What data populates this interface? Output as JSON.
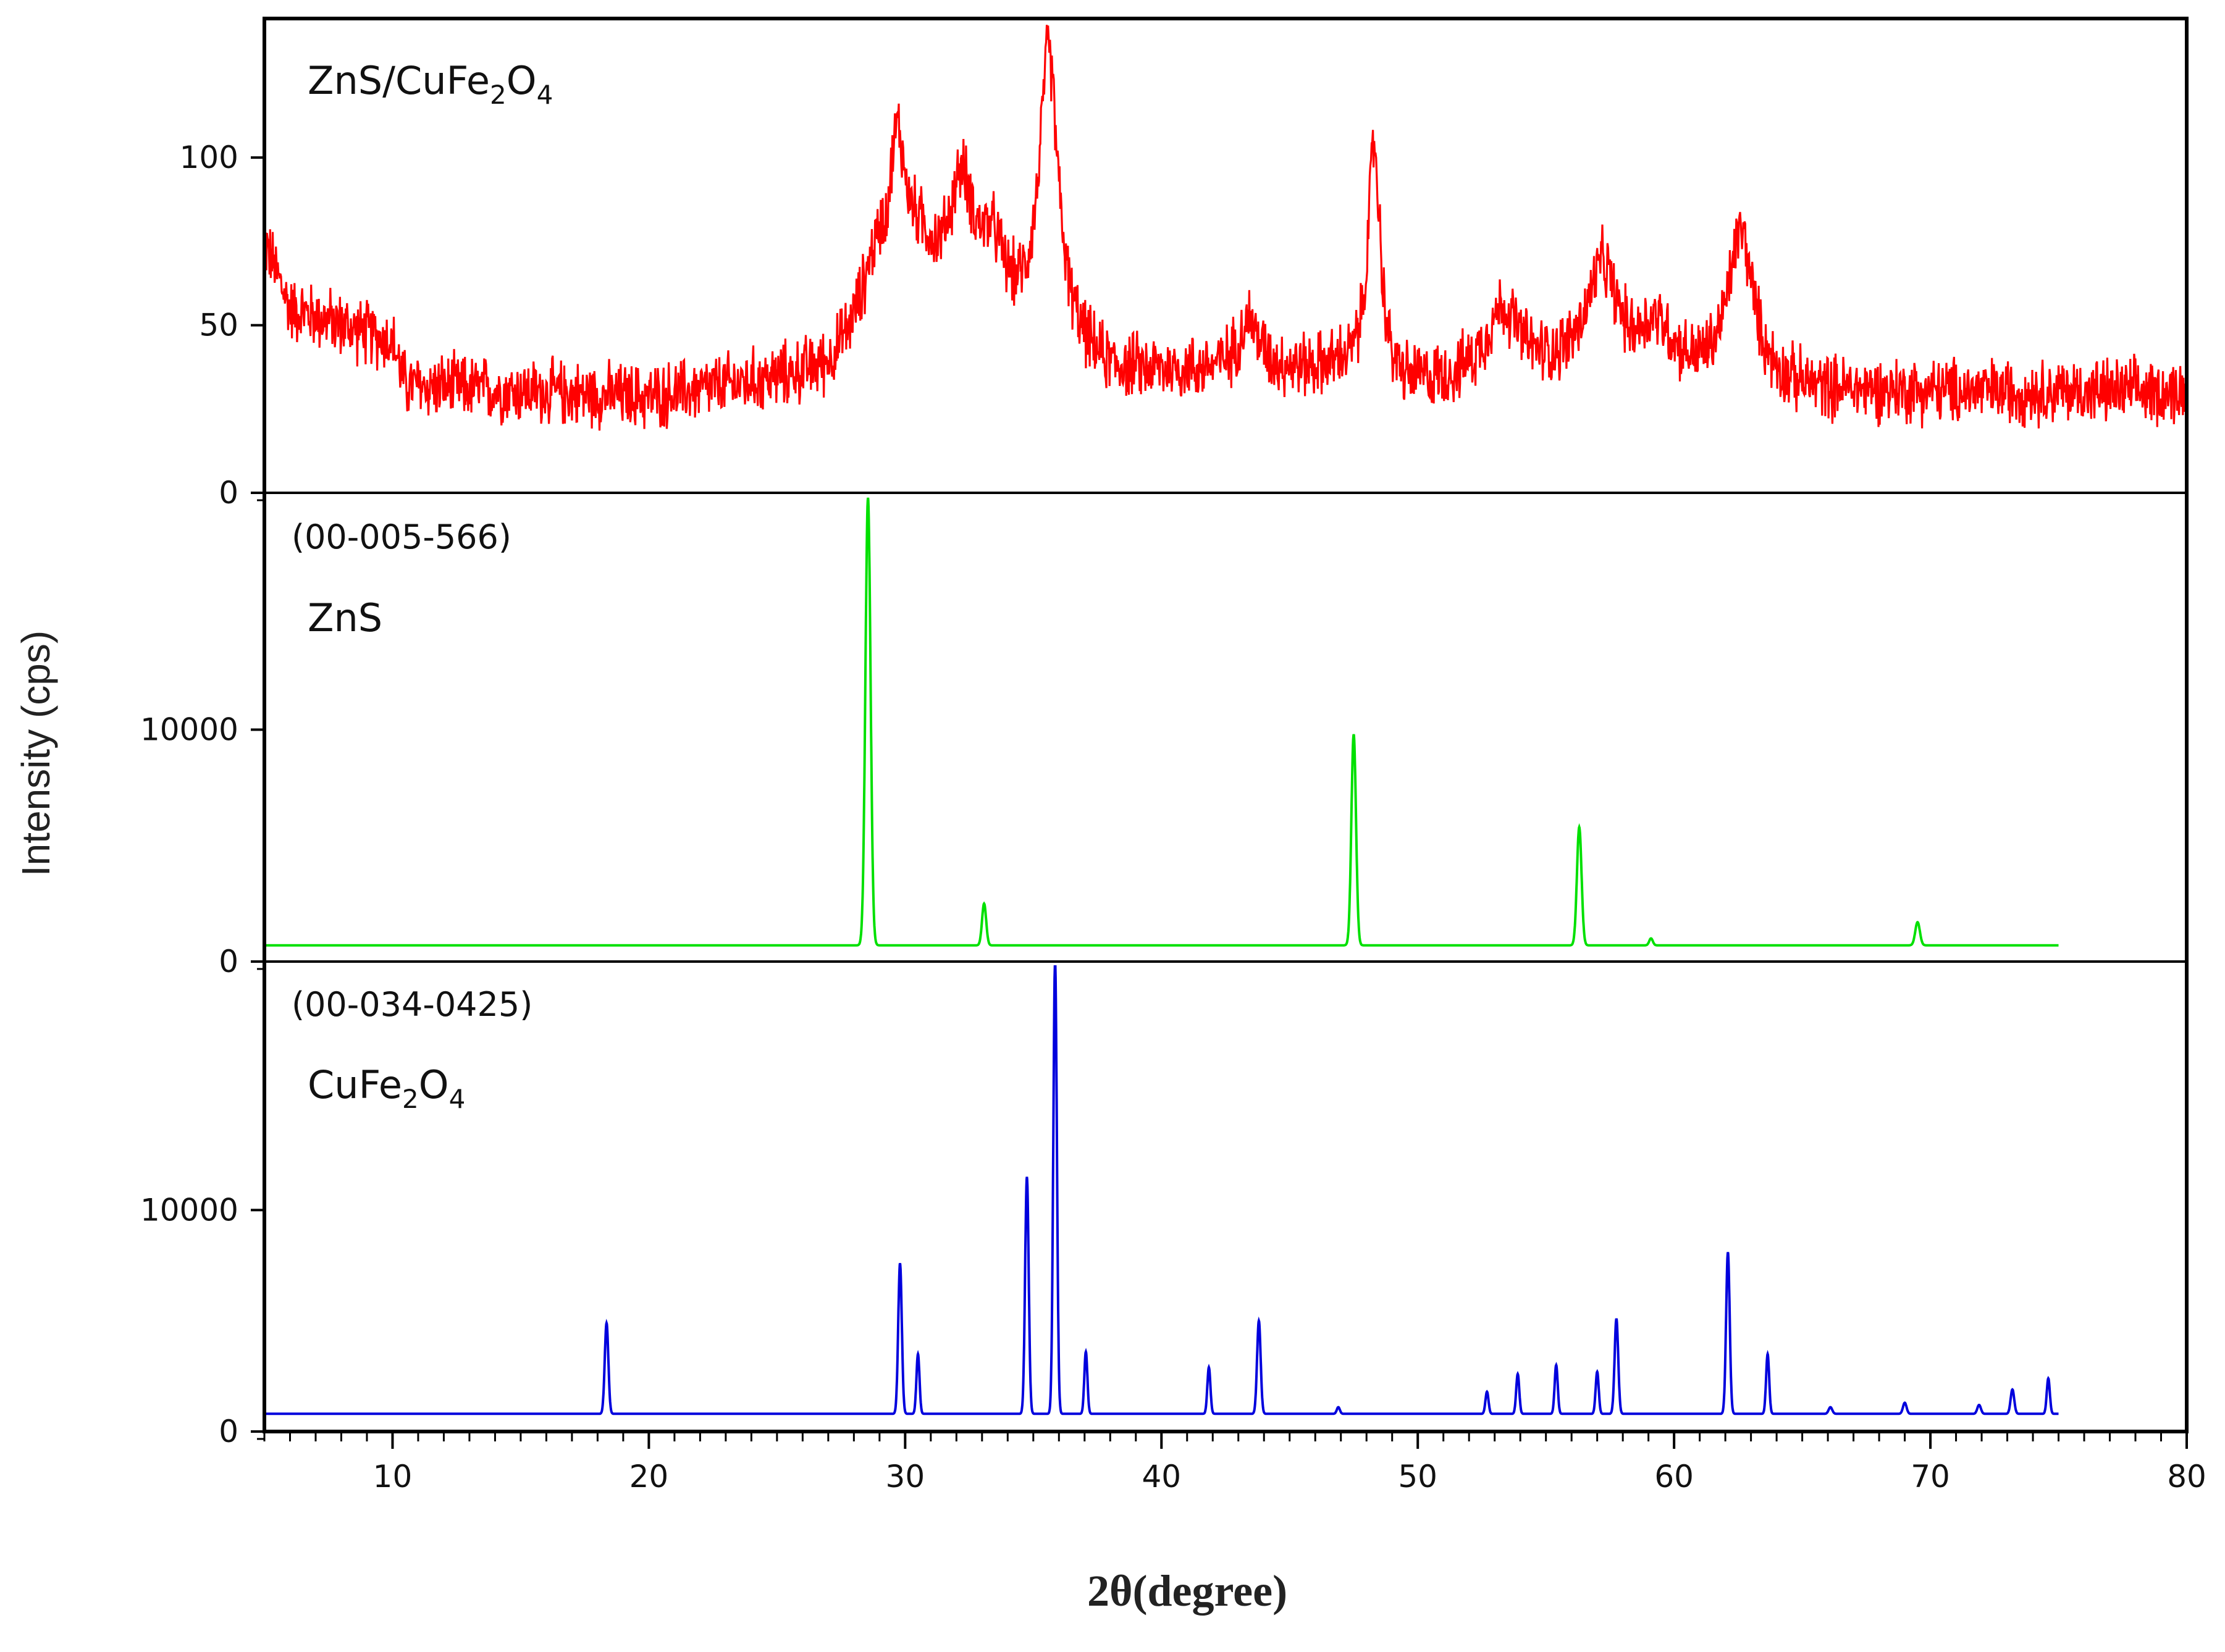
{
  "chart_data": {
    "type": "line",
    "xlabel": "2θ(degree)",
    "ylabel": "Intensity (cps)",
    "xlim": [
      5,
      80
    ],
    "x_ticks": [
      10,
      20,
      30,
      40,
      50,
      60,
      70,
      80
    ],
    "grid": false,
    "panels": [
      {
        "id": "composite",
        "label_main": "ZnS/CuFe",
        "label_sub1": "2",
        "label_mid": "O",
        "label_sub2": "4",
        "ref_code": "",
        "color": "#ff0000",
        "ylim": [
          0,
          140
        ],
        "y_ticks": [
          0,
          50,
          100
        ],
        "baseline_profile": [
          [
            5,
            75
          ],
          [
            6,
            55
          ],
          [
            10,
            45
          ],
          [
            10.5,
            32
          ],
          [
            20,
            28
          ],
          [
            27,
            35
          ],
          [
            28.5,
            45
          ],
          [
            29,
            50
          ],
          [
            35,
            45
          ],
          [
            38,
            35
          ],
          [
            47,
            36
          ],
          [
            49,
            30
          ],
          [
            56,
            36
          ],
          [
            65,
            30
          ],
          [
            80,
            30
          ]
        ],
        "noise": 8,
        "peaks": [
          {
            "x": 28.8,
            "y": 15,
            "w": 0.7
          },
          {
            "x": 29.7,
            "y": 40,
            "w": 0.35
          },
          {
            "x": 30.5,
            "y": 20,
            "w": 0.9
          },
          {
            "x": 32.2,
            "y": 38,
            "w": 0.6
          },
          {
            "x": 33.4,
            "y": 20,
            "w": 0.6
          },
          {
            "x": 35.6,
            "y": 85,
            "w": 0.45
          },
          {
            "x": 43.4,
            "y": 15,
            "w": 0.5
          },
          {
            "x": 48.3,
            "y": 70,
            "w": 0.3
          },
          {
            "x": 53.3,
            "y": 20,
            "w": 0.8
          },
          {
            "x": 57.2,
            "y": 30,
            "w": 0.7
          },
          {
            "x": 59.3,
            "y": 14,
            "w": 0.8
          },
          {
            "x": 62.6,
            "y": 45,
            "w": 0.6
          }
        ]
      },
      {
        "id": "zns",
        "label_main": "ZnS",
        "ref_code": "(00-005-566)",
        "color": "#00e000",
        "ylim": [
          0,
          20000
        ],
        "y_ticks": [
          0,
          10000
        ],
        "x_end": 75,
        "baseline": 700,
        "peaks": [
          {
            "x": 28.55,
            "y": 19300,
            "w": 0.1
          },
          {
            "x": 33.08,
            "y": 1800,
            "w": 0.08
          },
          {
            "x": 47.5,
            "y": 9100,
            "w": 0.09
          },
          {
            "x": 56.3,
            "y": 5100,
            "w": 0.09
          },
          {
            "x": 59.1,
            "y": 300,
            "w": 0.07
          },
          {
            "x": 69.5,
            "y": 1000,
            "w": 0.09
          }
        ]
      },
      {
        "id": "cufe2o4",
        "label_main": "CuFe",
        "label_sub1": "2",
        "label_mid": "O",
        "label_sub2": "4",
        "ref_code": "(00-034-0425)",
        "color": "#0000dd",
        "ylim": [
          0,
          21000
        ],
        "y_ticks": [
          0,
          10000
        ],
        "x_end": 75,
        "baseline": 800,
        "peaks": [
          {
            "x": 18.35,
            "y": 4100,
            "w": 0.07
          },
          {
            "x": 29.8,
            "y": 6800,
            "w": 0.07
          },
          {
            "x": 30.5,
            "y": 2700,
            "w": 0.06
          },
          {
            "x": 34.75,
            "y": 10700,
            "w": 0.07
          },
          {
            "x": 35.85,
            "y": 20500,
            "w": 0.07
          },
          {
            "x": 37.05,
            "y": 2800,
            "w": 0.06
          },
          {
            "x": 41.85,
            "y": 2100,
            "w": 0.06
          },
          {
            "x": 43.8,
            "y": 4200,
            "w": 0.07
          },
          {
            "x": 46.9,
            "y": 300,
            "w": 0.06
          },
          {
            "x": 52.7,
            "y": 1000,
            "w": 0.06
          },
          {
            "x": 53.9,
            "y": 1800,
            "w": 0.06
          },
          {
            "x": 55.4,
            "y": 2200,
            "w": 0.06
          },
          {
            "x": 57.0,
            "y": 1900,
            "w": 0.06
          },
          {
            "x": 57.75,
            "y": 4300,
            "w": 0.07
          },
          {
            "x": 62.1,
            "y": 7300,
            "w": 0.07
          },
          {
            "x": 63.65,
            "y": 2700,
            "w": 0.06
          },
          {
            "x": 66.1,
            "y": 300,
            "w": 0.07
          },
          {
            "x": 69.0,
            "y": 500,
            "w": 0.07
          },
          {
            "x": 71.9,
            "y": 400,
            "w": 0.07
          },
          {
            "x": 73.2,
            "y": 1100,
            "w": 0.07
          },
          {
            "x": 74.6,
            "y": 1600,
            "w": 0.06
          }
        ]
      }
    ]
  }
}
